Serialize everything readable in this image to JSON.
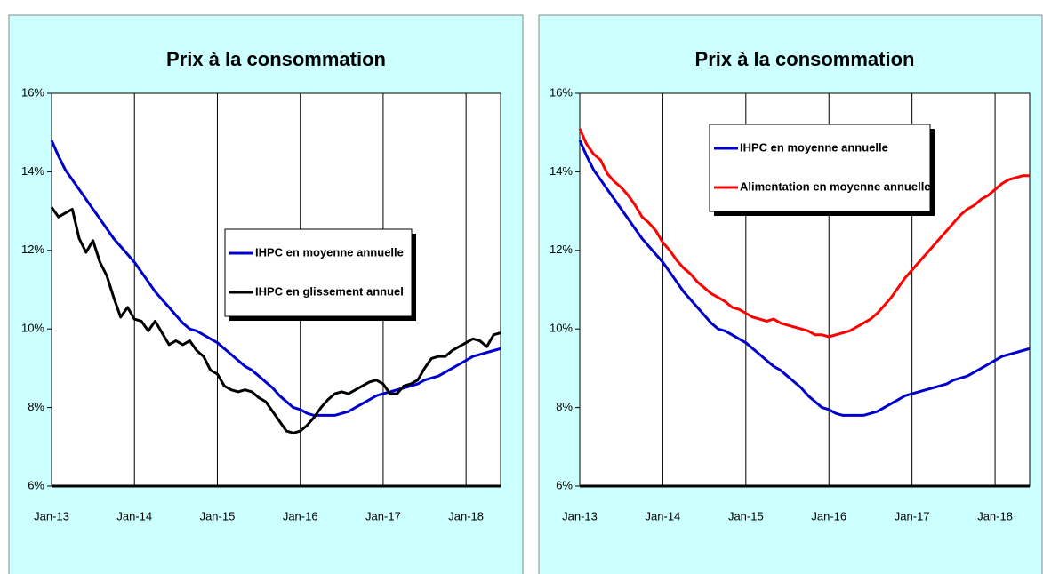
{
  "chart_data": [
    {
      "type": "line",
      "title": "Prix à la consommation",
      "categories": [
        "Jan-13",
        null,
        null,
        null,
        null,
        null,
        null,
        null,
        null,
        null,
        null,
        null,
        "Jan-14",
        null,
        null,
        null,
        null,
        null,
        null,
        null,
        null,
        null,
        null,
        null,
        "Jan-15",
        null,
        null,
        null,
        null,
        null,
        null,
        null,
        null,
        null,
        null,
        null,
        "Jan-16",
        null,
        null,
        null,
        null,
        null,
        null,
        null,
        null,
        null,
        null,
        null,
        "Jan-17",
        null,
        null,
        null,
        null,
        null,
        null,
        null,
        null,
        null,
        null,
        null,
        "Jan-18",
        null,
        null,
        null,
        null,
        null
      ],
      "series": [
        {
          "name": "IHPC en moyenne annuelle",
          "color": "#0000cc",
          "values": [
            14.8,
            14.4,
            14.05,
            13.8,
            13.55,
            13.3,
            13.05,
            12.8,
            12.55,
            12.3,
            12.1,
            11.9,
            11.7,
            11.45,
            11.2,
            10.95,
            10.75,
            10.55,
            10.35,
            10.15,
            10.0,
            9.95,
            9.85,
            9.75,
            9.65,
            9.5,
            9.35,
            9.2,
            9.05,
            8.95,
            8.8,
            8.65,
            8.5,
            8.3,
            8.15,
            8.0,
            7.95,
            7.85,
            7.8,
            7.8,
            7.8,
            7.8,
            7.85,
            7.9,
            8.0,
            8.1,
            8.2,
            8.3,
            8.35,
            8.4,
            8.45,
            8.5,
            8.55,
            8.6,
            8.7,
            8.75,
            8.8,
            8.9,
            9.0,
            9.1,
            9.2,
            9.3,
            9.35,
            9.4,
            9.45,
            9.5
          ]
        },
        {
          "name": "IHPC en glissement annuel",
          "color": "#000000",
          "values": [
            13.1,
            12.85,
            12.95,
            13.05,
            12.3,
            11.95,
            12.25,
            11.7,
            11.35,
            10.8,
            10.3,
            10.55,
            10.25,
            10.2,
            9.95,
            10.2,
            9.9,
            9.6,
            9.7,
            9.6,
            9.7,
            9.45,
            9.3,
            8.95,
            8.85,
            8.55,
            8.45,
            8.4,
            8.45,
            8.4,
            8.25,
            8.15,
            7.9,
            7.65,
            7.4,
            7.35,
            7.4,
            7.55,
            7.75,
            8.0,
            8.2,
            8.35,
            8.4,
            8.35,
            8.45,
            8.55,
            8.65,
            8.7,
            8.6,
            8.35,
            8.35,
            8.55,
            8.6,
            8.7,
            9.0,
            9.25,
            9.3,
            9.3,
            9.45,
            9.55,
            9.65,
            9.75,
            9.7,
            9.55,
            9.85,
            9.9
          ]
        }
      ],
      "ylim": [
        6,
        16
      ],
      "yticks": [
        {
          "value": 6,
          "label": "6%"
        },
        {
          "value": 8,
          "label": "8%"
        },
        {
          "value": 10,
          "label": "10%"
        },
        {
          "value": 12,
          "label": "12%"
        },
        {
          "value": 14,
          "label": "14%"
        },
        {
          "value": 16,
          "label": "16%"
        }
      ],
      "legend_position": "center"
    },
    {
      "type": "line",
      "title": "Prix à la consommation",
      "categories": [
        "Jan-13",
        null,
        null,
        null,
        null,
        null,
        null,
        null,
        null,
        null,
        null,
        null,
        "Jan-14",
        null,
        null,
        null,
        null,
        null,
        null,
        null,
        null,
        null,
        null,
        null,
        "Jan-15",
        null,
        null,
        null,
        null,
        null,
        null,
        null,
        null,
        null,
        null,
        null,
        "Jan-16",
        null,
        null,
        null,
        null,
        null,
        null,
        null,
        null,
        null,
        null,
        null,
        "Jan-17",
        null,
        null,
        null,
        null,
        null,
        null,
        null,
        null,
        null,
        null,
        null,
        "Jan-18",
        null,
        null,
        null,
        null,
        null
      ],
      "series": [
        {
          "name": "IHPC en moyenne annuelle",
          "color": "#0000cc",
          "values": [
            14.8,
            14.4,
            14.05,
            13.8,
            13.55,
            13.3,
            13.05,
            12.8,
            12.55,
            12.3,
            12.1,
            11.9,
            11.7,
            11.45,
            11.2,
            10.95,
            10.75,
            10.55,
            10.35,
            10.15,
            10.0,
            9.95,
            9.85,
            9.75,
            9.65,
            9.5,
            9.35,
            9.2,
            9.05,
            8.95,
            8.8,
            8.65,
            8.5,
            8.3,
            8.15,
            8.0,
            7.95,
            7.85,
            7.8,
            7.8,
            7.8,
            7.8,
            7.85,
            7.9,
            8.0,
            8.1,
            8.2,
            8.3,
            8.35,
            8.4,
            8.45,
            8.5,
            8.55,
            8.6,
            8.7,
            8.75,
            8.8,
            8.9,
            9.0,
            9.1,
            9.2,
            9.3,
            9.35,
            9.4,
            9.45,
            9.5
          ]
        },
        {
          "name": "Alimentation en moyenne annuelle",
          "color": "#ff0000",
          "values": [
            15.1,
            14.7,
            14.45,
            14.3,
            13.95,
            13.75,
            13.6,
            13.4,
            13.15,
            12.85,
            12.7,
            12.5,
            12.2,
            12.0,
            11.75,
            11.55,
            11.4,
            11.2,
            11.05,
            10.9,
            10.8,
            10.7,
            10.55,
            10.5,
            10.4,
            10.3,
            10.25,
            10.2,
            10.25,
            10.15,
            10.1,
            10.05,
            10.0,
            9.95,
            9.85,
            9.85,
            9.8,
            9.85,
            9.9,
            9.95,
            10.05,
            10.15,
            10.25,
            10.4,
            10.6,
            10.8,
            11.05,
            11.3,
            11.5,
            11.7,
            11.9,
            12.1,
            12.3,
            12.5,
            12.7,
            12.9,
            13.05,
            13.15,
            13.3,
            13.4,
            13.55,
            13.7,
            13.8,
            13.85,
            13.9,
            13.9
          ]
        }
      ],
      "ylim": [
        6,
        16
      ],
      "yticks": [
        {
          "value": 6,
          "label": "6%"
        },
        {
          "value": 8,
          "label": "8%"
        },
        {
          "value": 10,
          "label": "10%"
        },
        {
          "value": 12,
          "label": "12%"
        },
        {
          "value": 14,
          "label": "14%"
        },
        {
          "value": 16,
          "label": "16%"
        }
      ],
      "legend_position": "upper left"
    }
  ]
}
